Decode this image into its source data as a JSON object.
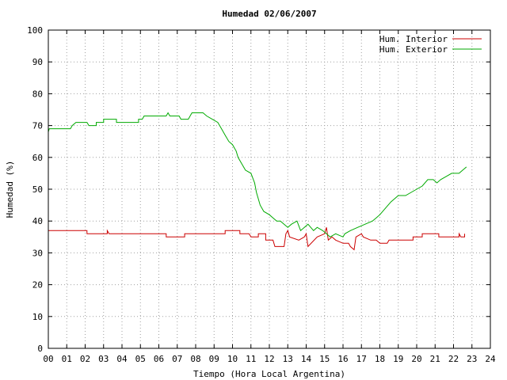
{
  "chart_data": {
    "type": "line",
    "title": "Humedad 02/06/2007",
    "xlabel": "Tiempo (Hora Local Argentina)",
    "ylabel": "Humedad (%)",
    "xlim": [
      0,
      24
    ],
    "ylim": [
      0,
      100
    ],
    "x_ticks": [
      "00",
      "01",
      "02",
      "03",
      "04",
      "05",
      "06",
      "07",
      "08",
      "09",
      "10",
      "11",
      "12",
      "13",
      "14",
      "15",
      "16",
      "17",
      "18",
      "19",
      "20",
      "21",
      "22",
      "23",
      "24"
    ],
    "y_ticks": [
      "0",
      "10",
      "20",
      "30",
      "40",
      "50",
      "60",
      "70",
      "80",
      "90",
      "100"
    ],
    "grid": true,
    "legend_position": "top-right",
    "series": [
      {
        "name": "Hum. Interior",
        "color": "#cc0000",
        "points": [
          [
            0,
            37
          ],
          [
            2.1,
            37
          ],
          [
            2.1,
            36
          ],
          [
            3.2,
            36
          ],
          [
            3.2,
            37
          ],
          [
            3.3,
            36
          ],
          [
            6.4,
            36
          ],
          [
            6.4,
            35
          ],
          [
            7.4,
            35
          ],
          [
            7.4,
            36
          ],
          [
            9.6,
            36
          ],
          [
            9.6,
            37
          ],
          [
            10.4,
            37
          ],
          [
            10.4,
            36
          ],
          [
            10.9,
            36
          ],
          [
            11,
            35
          ],
          [
            11.4,
            35
          ],
          [
            11.4,
            36
          ],
          [
            11.8,
            36
          ],
          [
            11.8,
            34
          ],
          [
            12.2,
            34
          ],
          [
            12.3,
            32
          ],
          [
            12.8,
            32
          ],
          [
            12.9,
            36
          ],
          [
            13.0,
            37
          ],
          [
            13.1,
            35
          ],
          [
            13.6,
            34
          ],
          [
            13.9,
            35
          ],
          [
            14.0,
            36
          ],
          [
            14.1,
            32
          ],
          [
            14.6,
            35
          ],
          [
            15.0,
            36
          ],
          [
            15.1,
            38
          ],
          [
            15.2,
            34
          ],
          [
            15.4,
            35
          ],
          [
            15.6,
            34
          ],
          [
            16.0,
            33
          ],
          [
            16.3,
            33
          ],
          [
            16.4,
            32
          ],
          [
            16.6,
            31
          ],
          [
            16.7,
            35
          ],
          [
            17.0,
            36
          ],
          [
            17.1,
            35
          ],
          [
            17.5,
            34
          ],
          [
            17.8,
            34
          ],
          [
            18.0,
            33
          ],
          [
            18.4,
            33
          ],
          [
            18.5,
            34
          ],
          [
            19.8,
            34
          ],
          [
            19.8,
            35
          ],
          [
            20.3,
            35
          ],
          [
            20.3,
            36
          ],
          [
            21.2,
            36
          ],
          [
            21.2,
            35
          ],
          [
            22.3,
            35
          ],
          [
            22.3,
            36
          ],
          [
            22.4,
            35
          ],
          [
            22.6,
            35
          ],
          [
            22.6,
            36
          ],
          [
            22.6,
            35
          ]
        ]
      },
      {
        "name": "Hum. Exterior",
        "color": "#00aa00",
        "points": [
          [
            0,
            68
          ],
          [
            0.05,
            69
          ],
          [
            1.2,
            69
          ],
          [
            1.3,
            70
          ],
          [
            1.5,
            71
          ],
          [
            2.1,
            71
          ],
          [
            2.2,
            70
          ],
          [
            2.6,
            70
          ],
          [
            2.6,
            71
          ],
          [
            3.0,
            71
          ],
          [
            3.0,
            72
          ],
          [
            3.7,
            72
          ],
          [
            3.7,
            71
          ],
          [
            4.9,
            71
          ],
          [
            4.9,
            72
          ],
          [
            5.1,
            72
          ],
          [
            5.2,
            73
          ],
          [
            6.4,
            73
          ],
          [
            6.5,
            74
          ],
          [
            6.6,
            73
          ],
          [
            7.1,
            73
          ],
          [
            7.2,
            72
          ],
          [
            7.6,
            72
          ],
          [
            7.7,
            73
          ],
          [
            7.8,
            74
          ],
          [
            8.4,
            74
          ],
          [
            8.6,
            73
          ],
          [
            8.9,
            72
          ],
          [
            9.2,
            71
          ],
          [
            9.4,
            69
          ],
          [
            9.6,
            67
          ],
          [
            9.8,
            65
          ],
          [
            10.0,
            64
          ],
          [
            10.2,
            62
          ],
          [
            10.3,
            60
          ],
          [
            10.5,
            58
          ],
          [
            10.7,
            56
          ],
          [
            11.0,
            55
          ],
          [
            11.2,
            52
          ],
          [
            11.3,
            49
          ],
          [
            11.5,
            45
          ],
          [
            11.7,
            43
          ],
          [
            12.0,
            42
          ],
          [
            12.2,
            41
          ],
          [
            12.4,
            40
          ],
          [
            12.6,
            40
          ],
          [
            12.8,
            39
          ],
          [
            13.0,
            38
          ],
          [
            13.2,
            39
          ],
          [
            13.5,
            40
          ],
          [
            13.7,
            37
          ],
          [
            13.9,
            38
          ],
          [
            14.1,
            39
          ],
          [
            14.4,
            37
          ],
          [
            14.6,
            38
          ],
          [
            14.9,
            37
          ],
          [
            15.1,
            36
          ],
          [
            15.3,
            35
          ],
          [
            15.6,
            36
          ],
          [
            16.0,
            35
          ],
          [
            16.1,
            36
          ],
          [
            16.4,
            37
          ],
          [
            16.8,
            38
          ],
          [
            17.2,
            39
          ],
          [
            17.6,
            40
          ],
          [
            17.8,
            41
          ],
          [
            18.0,
            42
          ],
          [
            18.3,
            44
          ],
          [
            18.6,
            46
          ],
          [
            19.0,
            48
          ],
          [
            19.4,
            48
          ],
          [
            19.7,
            49
          ],
          [
            20.0,
            50
          ],
          [
            20.3,
            51
          ],
          [
            20.6,
            53
          ],
          [
            20.9,
            53
          ],
          [
            21.1,
            52
          ],
          [
            21.3,
            53
          ],
          [
            21.6,
            54
          ],
          [
            21.9,
            55
          ],
          [
            22.3,
            55
          ],
          [
            22.5,
            56
          ],
          [
            22.7,
            57
          ]
        ]
      }
    ]
  }
}
